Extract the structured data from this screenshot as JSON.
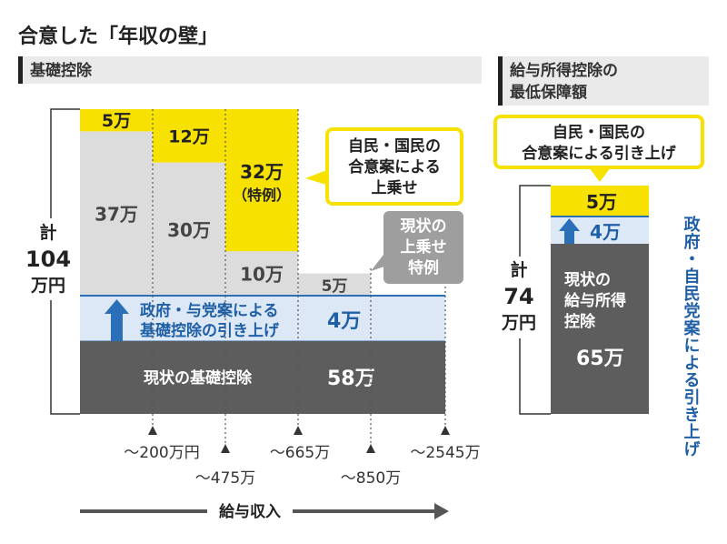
{
  "title": "合意した「年収の壁」",
  "colors": {
    "yellow": "#f7e100",
    "yellow_border": "#e2c400",
    "grey_light": "#dcdcdc",
    "grey_mid": "#bdbdbd",
    "grey_dark": "#5d5d5d",
    "blue_band": "#dde8f6",
    "blue_text": "#1f5fa6",
    "blue_arrow": "#2a6fb7",
    "header_bg": "#eaeaea",
    "header_bar": "#222222"
  },
  "left_panel": {
    "header": "基礎控除",
    "total_line1": "計",
    "total_line2": "104",
    "total_line3": "万円",
    "callout_lines": [
      "自民・国民の",
      "合意案による",
      "上乗せ"
    ],
    "grey_note_lines": [
      "現状の",
      "上乗せ",
      "特例"
    ]
  },
  "right_panel": {
    "header_lines": [
      "給与所得控除の",
      "最低保障額"
    ],
    "callout_lines": [
      "自民・国民の",
      "合意案による引き上げ"
    ],
    "total_line1": "計",
    "total_line2": "74",
    "total_line3": "万円",
    "vertical_note": "政府・自民党案による引き上げ"
  },
  "chart_data": [
    {
      "type": "bar",
      "stacked": true,
      "panel": "基礎控除",
      "xlabel": "給与収入",
      "x_ticks": [
        "〜200万円",
        "〜475万",
        "〜665万",
        "〜850万",
        "〜2545万"
      ],
      "total": "計104万円",
      "layers": [
        {
          "name": "現状の基礎控除",
          "label": "現状の基礎控除",
          "value_label": "58万",
          "value": 58,
          "spans_all_brackets": true
        },
        {
          "name": "政府・与党案による基礎控除の引き上げ",
          "label_lines": [
            "政府・与党案による",
            "基礎控除の引き上げ"
          ],
          "value_label": "4万",
          "value": 4,
          "spans_all_brackets": true
        }
      ],
      "brackets": [
        {
          "upper": "〜200万円",
          "grey_value": 37,
          "grey_label": "37万",
          "yellow_value": 5,
          "yellow_label": "5万"
        },
        {
          "upper": "〜475万",
          "grey_value": 30,
          "grey_label": "30万",
          "yellow_value": 12,
          "yellow_label": "12万"
        },
        {
          "upper": "〜665万",
          "grey_value": 10,
          "grey_label": "10万",
          "yellow_value": 32,
          "yellow_label_line1": "32万",
          "yellow_label_line2": "（特例）"
        },
        {
          "upper": "〜850万",
          "grey_value": 5,
          "grey_label": "5万",
          "yellow_value": 0
        },
        {
          "upper": "〜2545万",
          "grey_value": 0,
          "yellow_value": 0
        }
      ]
    },
    {
      "type": "bar",
      "stacked": true,
      "panel": "給与所得控除の最低保障額",
      "total": "計74万円",
      "segments": [
        {
          "name": "現状の給与所得控除",
          "label_lines": [
            "現状の",
            "給与所得",
            "控除"
          ],
          "value_label": "65万",
          "value": 65
        },
        {
          "name": "政府・自民党案による引き上げ",
          "value_label": "4万",
          "value": 4
        },
        {
          "name": "自民・国民の合意案による引き上げ",
          "value_label": "5万",
          "value": 5
        }
      ]
    }
  ]
}
